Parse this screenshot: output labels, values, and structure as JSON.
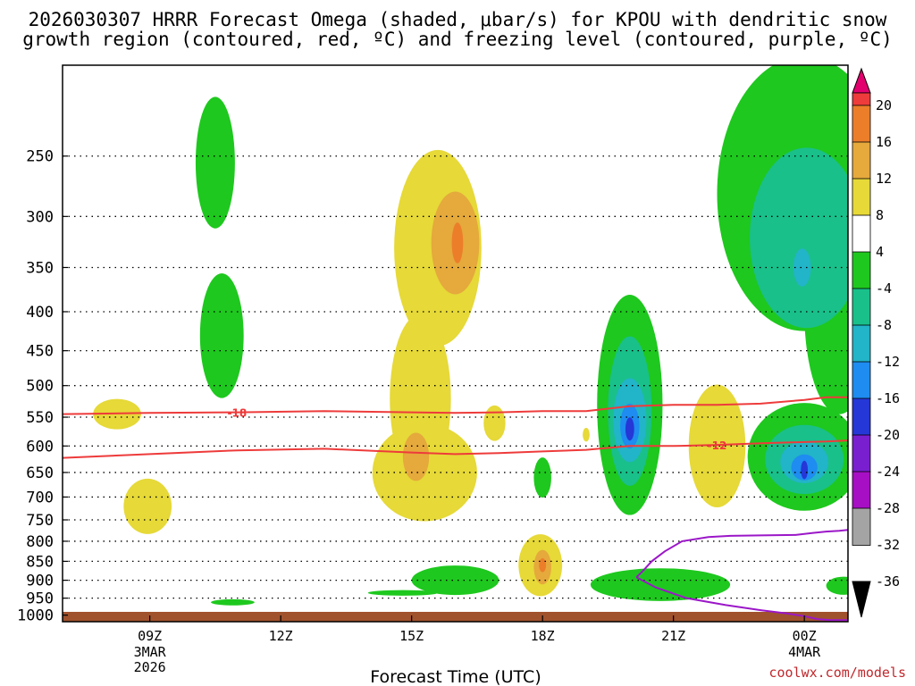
{
  "title": {
    "line1": "2026030307 HRRR Forecast Omega (shaded, μbar/s) for KPOU with dendritic snow",
    "line2": "growth region (contoured, red, ºC) and freezing level (contoured, purple, ºC)"
  },
  "credit": "coolwx.com/models",
  "chart_data": {
    "type": "time-height cross-section",
    "title": "2026030307 HRRR Forecast Omega (shaded, μbar/s) for KPOU with dendritic snow growth region (contoured, red, ºC) and freezing level (contoured, purple, ºC)",
    "xlabel": "Forecast Time (UTC)",
    "ylabel": "Pressure (hPa)",
    "x_range_utc_hours": [
      7,
      25
    ],
    "x_ticks": [
      {
        "hour": 9,
        "label": "09Z",
        "sub": [
          "3MAR",
          "2026"
        ]
      },
      {
        "hour": 12,
        "label": "12Z",
        "sub": []
      },
      {
        "hour": 15,
        "label": "15Z",
        "sub": []
      },
      {
        "hour": 18,
        "label": "18Z",
        "sub": []
      },
      {
        "hour": 21,
        "label": "21Z",
        "sub": []
      },
      {
        "hour": 24,
        "label": "00Z",
        "sub": [
          "4MAR"
        ]
      }
    ],
    "y_range_hpa": [
      1020,
      190
    ],
    "y_ticks": [
      250,
      300,
      350,
      400,
      450,
      500,
      550,
      600,
      650,
      700,
      750,
      800,
      850,
      900,
      950,
      1000
    ],
    "colorbar": {
      "labels": [
        "20",
        "16",
        "12",
        "8",
        "4",
        "-4",
        "-8",
        "-12",
        "-16",
        "-20",
        "-24",
        "-28",
        "-32",
        "-36"
      ],
      "bins": [
        {
          "range": "> 20",
          "color": "#e2006e"
        },
        {
          "range": "16 to 20",
          "color": "#ee3b3b"
        },
        {
          "range": "12 to 16",
          "color": "#ec7e2a"
        },
        {
          "range": "8 to 12",
          "color": "#e5a93c"
        },
        {
          "range": "4 to 8",
          "color": "#e6d938"
        },
        {
          "range": "-4 to 4",
          "color": "#ffffff"
        },
        {
          "range": "-8 to -4",
          "color": "#1ec81e"
        },
        {
          "range": "-12 to -8",
          "color": "#19c08a"
        },
        {
          "range": "-16 to -12",
          "color": "#22b4c8"
        },
        {
          "range": "-20 to -16",
          "color": "#1e8cf0"
        },
        {
          "range": "-24 to -20",
          "color": "#2537d6"
        },
        {
          "range": "-28 to -24",
          "color": "#7a1fd0"
        },
        {
          "range": "-32 to -28",
          "color": "#a70fc5"
        },
        {
          "range": "-36 to -32",
          "color": "#a4a4a4"
        },
        {
          "range": "< -36",
          "color": "#000000"
        }
      ]
    },
    "omega_regions": [
      {
        "color": "#1ec81e",
        "t": 10.5,
        "p": 255,
        "dt": 0.45,
        "dp": 50
      },
      {
        "color": "#1ec81e",
        "t": 10.65,
        "p": 430,
        "dt": 0.5,
        "dp": 80
      },
      {
        "color": "#1ec81e",
        "t": 10.9,
        "p": 962,
        "dt": 0.5,
        "dp": 9
      },
      {
        "color": "#e6d938",
        "t": 8.25,
        "p": 545,
        "dt": 0.55,
        "dp": 25
      },
      {
        "color": "#e6d938",
        "t": 8.95,
        "p": 720,
        "dt": 0.55,
        "dp": 60
      },
      {
        "color": "#e6d938",
        "t": 15.6,
        "p": 330,
        "dt": 1.0,
        "dp": 95
      },
      {
        "color": "#e6d938",
        "t": 15.2,
        "p": 520,
        "dt": 0.7,
        "dp": 130
      },
      {
        "color": "#e6d938",
        "t": 15.3,
        "p": 650,
        "dt": 1.2,
        "dp": 95
      },
      {
        "color": "#e5a93c",
        "t": 16.0,
        "p": 325,
        "dt": 0.55,
        "dp": 50
      },
      {
        "color": "#ec7e2a",
        "t": 16.05,
        "p": 325,
        "dt": 0.13,
        "dp": 20
      },
      {
        "color": "#e5a93c",
        "t": 15.1,
        "p": 620,
        "dt": 0.3,
        "dp": 45
      },
      {
        "color": "#e6d938",
        "t": 16.9,
        "p": 560,
        "dt": 0.25,
        "dp": 30
      },
      {
        "color": "#e6d938",
        "t": 19.0,
        "p": 580,
        "dt": 0.08,
        "dp": 12
      },
      {
        "color": "#e6d938",
        "t": 22.0,
        "p": 600,
        "dt": 0.65,
        "dp": 110
      },
      {
        "color": "#1ec81e",
        "t": 16.0,
        "p": 900,
        "dt": 1.0,
        "dp": 40
      },
      {
        "color": "#1ec81e",
        "t": 14.8,
        "p": 935,
        "dt": 0.8,
        "dp": 8
      },
      {
        "color": "#1ec81e",
        "t": 18.0,
        "p": 660,
        "dt": 0.2,
        "dp": 40
      },
      {
        "color": "#e6d938",
        "t": 17.95,
        "p": 860,
        "dt": 0.5,
        "dp": 80
      },
      {
        "color": "#e5a93c",
        "t": 18.0,
        "p": 865,
        "dt": 0.2,
        "dp": 45
      },
      {
        "color": "#ec7e2a",
        "t": 18.0,
        "p": 860,
        "dt": 0.08,
        "dp": 18
      },
      {
        "color": "#1ec81e",
        "t": 20.0,
        "p": 530,
        "dt": 0.75,
        "dp": 170
      },
      {
        "color": "#19c08a",
        "t": 20.0,
        "p": 540,
        "dt": 0.5,
        "dp": 120
      },
      {
        "color": "#22b4c8",
        "t": 20.0,
        "p": 555,
        "dt": 0.38,
        "dp": 70
      },
      {
        "color": "#1e8cf0",
        "t": 20.0,
        "p": 565,
        "dt": 0.22,
        "dp": 38
      },
      {
        "color": "#2537d6",
        "t": 20.0,
        "p": 570,
        "dt": 0.1,
        "dp": 20
      },
      {
        "color": "#1ec81e",
        "t": 20.7,
        "p": 912,
        "dt": 1.6,
        "dp": 45
      },
      {
        "color": "#1ec81e",
        "t": 24.0,
        "p": 280,
        "dt": 2.0,
        "dp": 110
      },
      {
        "color": "#1ec81e",
        "t": 24.8,
        "p": 400,
        "dt": 0.8,
        "dp": 120
      },
      {
        "color": "#19c08a",
        "t": 24.05,
        "p": 320,
        "dt": 1.3,
        "dp": 85
      },
      {
        "color": "#22b4c8",
        "t": 23.95,
        "p": 350,
        "dt": 0.2,
        "dp": 20
      },
      {
        "color": "#1ec81e",
        "t": 24.0,
        "p": 620,
        "dt": 1.3,
        "dp": 100
      },
      {
        "color": "#19c08a",
        "t": 24.0,
        "p": 625,
        "dt": 0.9,
        "dp": 65
      },
      {
        "color": "#22b4c8",
        "t": 24.0,
        "p": 630,
        "dt": 0.55,
        "dp": 40
      },
      {
        "color": "#1e8cf0",
        "t": 24.0,
        "p": 640,
        "dt": 0.3,
        "dp": 25
      },
      {
        "color": "#2537d6",
        "t": 24.0,
        "p": 645,
        "dt": 0.08,
        "dp": 18
      },
      {
        "color": "#1ec81e",
        "t": 24.9,
        "p": 915,
        "dt": 0.4,
        "dp": 25
      }
    ],
    "dgz_contours": [
      {
        "label": "-18",
        "color": "#ee3b3b",
        "t": [
          7,
          9,
          11,
          13,
          15,
          16,
          17,
          18,
          19,
          20,
          21,
          22,
          23,
          24,
          24.5,
          25
        ],
        "p": [
          545,
          543,
          542,
          540,
          542,
          543,
          542,
          540,
          540,
          532,
          530,
          530,
          528,
          522,
          518,
          518
        ],
        "label_t": 11.0
      },
      {
        "label": "-12",
        "color": "#ee3b3b",
        "t": [
          7,
          9,
          11,
          13,
          15,
          16,
          17,
          18,
          19,
          20,
          21,
          22,
          23,
          24,
          24.5,
          25
        ],
        "p": [
          622,
          615,
          608,
          605,
          612,
          615,
          613,
          610,
          607,
          600,
          600,
          598,
          595,
          593,
          592,
          590
        ],
        "label_t": 22.0
      }
    ],
    "freezing_level": {
      "label": "0",
      "color": "#9b17c8",
      "t": [
        20.15,
        20.3,
        20.5,
        20.8,
        21.2,
        21.8,
        22.3,
        23.0,
        23.8,
        24.2,
        24.5,
        24.8,
        25
      ],
      "p": [
        892,
        875,
        850,
        825,
        800,
        790,
        787,
        786,
        785,
        780,
        777,
        775,
        773
      ],
      "lower_t": [
        20.15,
        20.6,
        21.3,
        22.2,
        23.0,
        23.6,
        24.0,
        24.3,
        24.6,
        25
      ],
      "lower_p": [
        892,
        920,
        950,
        970,
        985,
        995,
        1003,
        1012,
        1015,
        1015
      ]
    }
  }
}
